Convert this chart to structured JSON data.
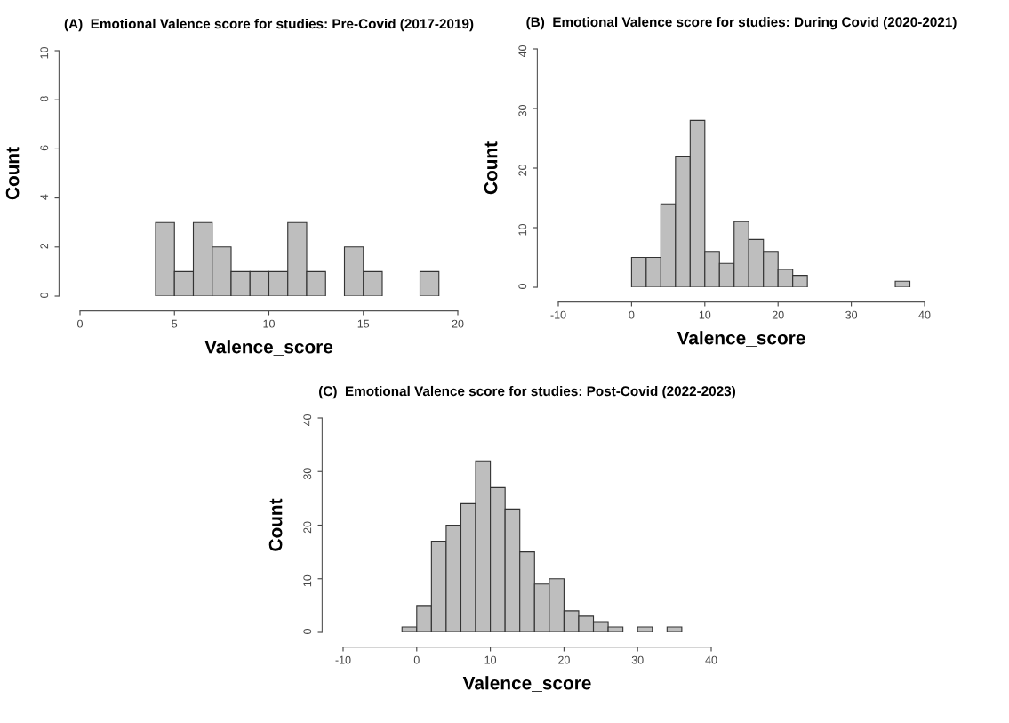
{
  "chart_data": [
    {
      "type": "histogram",
      "title": "(A)  Emotional Valence score for studies: Pre-Covid (2017-2019)",
      "xlabel": "Valence_score",
      "ylabel": "Count",
      "color": "#bebebe",
      "bins": [
        4,
        5,
        6,
        7,
        8,
        9,
        10,
        11,
        12,
        13,
        14,
        15,
        16,
        17,
        18,
        19
      ],
      "values": [
        3,
        1,
        3,
        2,
        1,
        1,
        1,
        3,
        1,
        0,
        2,
        1,
        0,
        0,
        1
      ],
      "xlim": [
        0,
        20
      ],
      "xticks": [
        0,
        5,
        10,
        15,
        20
      ],
      "ylim": [
        0,
        10
      ],
      "yticks": [
        0,
        2,
        4,
        6,
        8,
        10
      ],
      "grid": false
    },
    {
      "type": "histogram",
      "title": "(B)  Emotional Valence score for studies: During Covid (2020-2021)",
      "xlabel": "Valence_score",
      "ylabel": "Count",
      "color": "#bebebe",
      "bins": [
        0,
        2,
        4,
        6,
        8,
        10,
        12,
        14,
        16,
        18,
        20,
        22,
        24,
        26,
        28,
        30,
        32,
        34,
        36,
        38
      ],
      "values": [
        5,
        5,
        14,
        22,
        28,
        6,
        4,
        11,
        8,
        6,
        3,
        2,
        0,
        0,
        0,
        0,
        0,
        0,
        1
      ],
      "xlim": [
        -10,
        40
      ],
      "xticks": [
        -10,
        0,
        10,
        20,
        30,
        40
      ],
      "ylim": [
        0,
        40
      ],
      "yticks": [
        0,
        10,
        20,
        30,
        40
      ],
      "grid": false
    },
    {
      "type": "histogram",
      "title": "(C)  Emotional Valence score for studies: Post-Covid (2022-2023)",
      "xlabel": "Valence_score",
      "ylabel": "Count",
      "color": "#bebebe",
      "bins": [
        -2,
        0,
        2,
        4,
        6,
        8,
        10,
        12,
        14,
        16,
        18,
        20,
        22,
        24,
        26,
        28,
        30,
        32,
        34,
        36
      ],
      "values": [
        1,
        5,
        17,
        20,
        24,
        32,
        27,
        23,
        15,
        9,
        10,
        4,
        3,
        2,
        1,
        0,
        1,
        0,
        1
      ],
      "xlim": [
        -10,
        40
      ],
      "xticks": [
        -10,
        0,
        10,
        20,
        30,
        40
      ],
      "ylim": [
        0,
        40
      ],
      "yticks": [
        0,
        10,
        20,
        30,
        40
      ],
      "grid": false
    }
  ]
}
